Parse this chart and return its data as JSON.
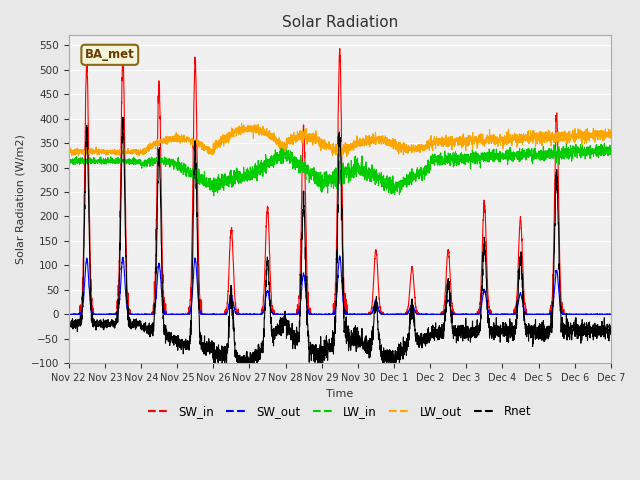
{
  "title": "Solar Radiation",
  "ylabel": "Solar Radiation (W/m2)",
  "xlabel": "Time",
  "ylim": [
    -100,
    570
  ],
  "yticks": [
    -100,
    -50,
    0,
    50,
    100,
    150,
    200,
    250,
    300,
    350,
    400,
    450,
    500,
    550
  ],
  "background_color": "#e8e8e8",
  "plot_bg_color": "#f0f0f0",
  "annotation_text": "BA_met",
  "annotation_box_color": "#f5f5dc",
  "annotation_border_color": "#8b6914",
  "colors": {
    "SW_in": "#ff0000",
    "SW_out": "#0000ff",
    "LW_in": "#00cc00",
    "LW_out": "#ffa500",
    "Rnet": "#000000"
  },
  "x_tick_labels": [
    "Nov 22",
    "Nov 23",
    "Nov 24",
    "Nov 25",
    "Nov 26",
    "Nov 27",
    "Nov 28",
    "Nov 29",
    "Nov 30",
    "Dec 1",
    "Dec 2",
    "Dec 3",
    "Dec 4",
    "Dec 5",
    "Dec 6",
    "Dec 7"
  ],
  "n_days": 15,
  "n_points": 3600,
  "seed": 42
}
